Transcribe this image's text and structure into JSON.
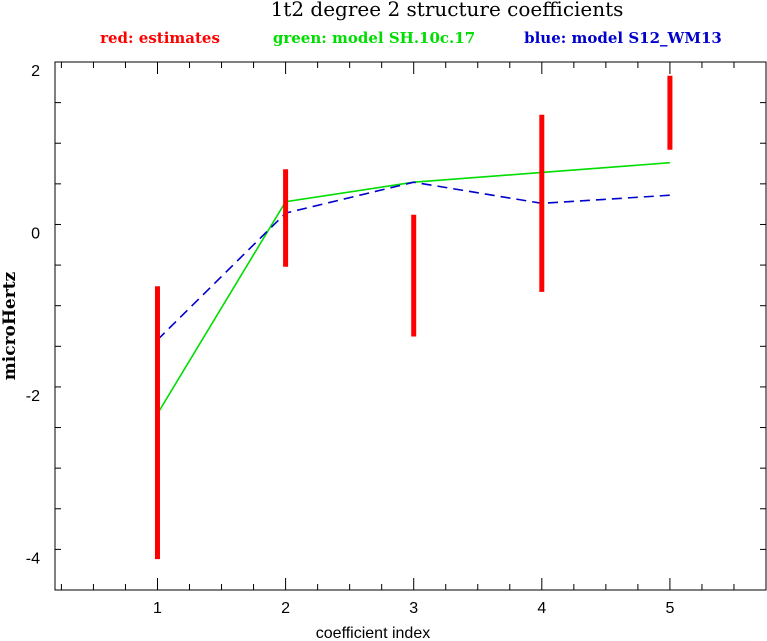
{
  "chart_data": {
    "type": "line",
    "title": "1t2 degree 2 structure coefficients",
    "xlabel": "coefficient index",
    "ylabel": "microHertz",
    "xlim": [
      0.2,
      5.75
    ],
    "ylim": [
      -4.4,
      2.1
    ],
    "x_ticks": [
      1,
      2,
      3,
      4,
      5
    ],
    "y_ticks": [
      -4,
      -2,
      0,
      2
    ],
    "legend": {
      "placement": "top",
      "entries": [
        {
          "text": "red: estimates",
          "color": "#ff0000"
        },
        {
          "text": "green: model SH.10c.17",
          "color": "#00dd00"
        },
        {
          "text": "blue: model S12_WM13",
          "color": "#0000cc"
        }
      ]
    },
    "x": [
      1,
      2,
      3,
      4,
      5
    ],
    "estimates": {
      "color": "#ff0000",
      "ranges": [
        {
          "x": 1,
          "low": -4.02,
          "high": -0.66
        },
        {
          "x": 2,
          "low": -0.42,
          "high": 0.78
        },
        {
          "x": 3,
          "low": -1.28,
          "high": 0.22
        },
        {
          "x": 4,
          "low": -0.73,
          "high": 1.45
        },
        {
          "x": 5,
          "low": 1.02,
          "high": 1.93
        }
      ]
    },
    "series": [
      {
        "color": "#00dd00",
        "style": "solid",
        "values": [
          -2.23,
          0.38,
          0.62,
          0.74,
          0.86
        ]
      },
      {
        "color": "#0000cc",
        "style": "dashed",
        "values": [
          -1.32,
          0.24,
          0.62,
          0.36,
          0.46
        ]
      }
    ]
  }
}
